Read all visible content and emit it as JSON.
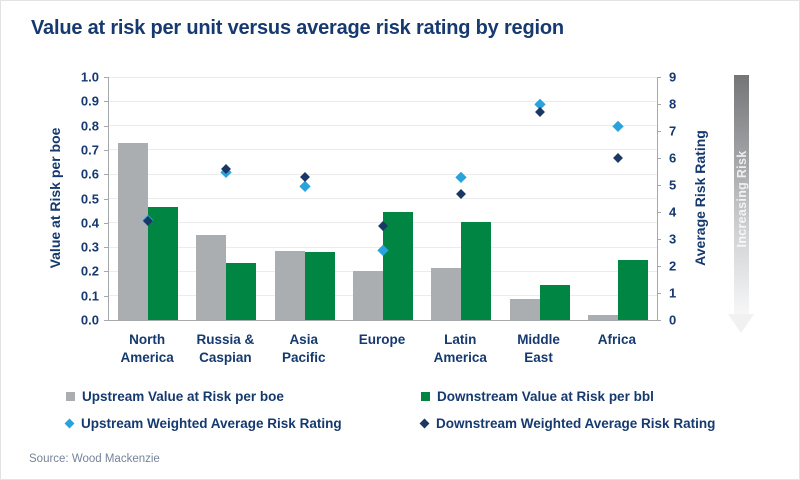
{
  "title": "Value at risk per unit versus average risk rating by region",
  "source": "Source: Wood Mackenzie",
  "colors": {
    "title_text": "#16396f",
    "axis_text": "#16396f",
    "axis_line": "#a6a9ac",
    "gridline": "#ececec",
    "upstream_bar": "#abaeb1",
    "downstream_bar": "#008542",
    "upstream_diamond": "#29a3dc",
    "downstream_diamond": "#1b3764",
    "source_text": "#77839b"
  },
  "chart_data": {
    "type": "bar",
    "subtype": "grouped bars with scatter diamonds on secondary axis",
    "title": "Value at risk per unit versus average risk rating by region",
    "categories": [
      "North America",
      "Russia & Caspian",
      "Asia Pacific",
      "Europe",
      "Latin America",
      "Middle East",
      "Africa"
    ],
    "category_lines": [
      [
        "North",
        "America"
      ],
      [
        "Russia &",
        "Caspian"
      ],
      [
        "Asia",
        "Pacific"
      ],
      [
        "Europe"
      ],
      [
        "Latin",
        "America"
      ],
      [
        "Middle",
        "East"
      ],
      [
        "Africa"
      ]
    ],
    "series": [
      {
        "name": "Upstream Value at Risk per boe",
        "type": "bar",
        "axis": "left",
        "color": "#abaeb1",
        "values": [
          0.73,
          0.35,
          0.285,
          0.2,
          0.215,
          0.085,
          0.02
        ]
      },
      {
        "name": "Downstream Value at Risk per bbl",
        "type": "bar",
        "axis": "left",
        "color": "#008542",
        "values": [
          0.465,
          0.235,
          0.28,
          0.445,
          0.405,
          0.145,
          0.245
        ]
      },
      {
        "name": "Upstream Weighted Average Risk Rating",
        "type": "scatter",
        "axis": "right",
        "color": "#29a3dc",
        "values": [
          3.7,
          5.5,
          4.95,
          2.6,
          5.3,
          8.0,
          7.2
        ]
      },
      {
        "name": "Downstream Weighted Average Risk Rating",
        "type": "scatter",
        "axis": "right",
        "color": "#1b3764",
        "values": [
          3.65,
          5.6,
          5.3,
          3.5,
          4.65,
          7.7,
          6.0
        ]
      }
    ],
    "left_axis": {
      "label": "Value at Risk per boe",
      "min": 0.0,
      "max": 1.0,
      "ticks": [
        "0.0",
        "0.1",
        "0.2",
        "0.3",
        "0.4",
        "0.5",
        "0.6",
        "0.7",
        "0.8",
        "0.9",
        "1.0"
      ]
    },
    "right_axis": {
      "label": "Average Risk Rating",
      "min": 0,
      "max": 9,
      "ticks": [
        "0",
        "1",
        "2",
        "3",
        "4",
        "5",
        "6",
        "7",
        "8",
        "9"
      ]
    },
    "annotation": "Increasing Risk",
    "grid": true,
    "legend_position": "bottom"
  }
}
